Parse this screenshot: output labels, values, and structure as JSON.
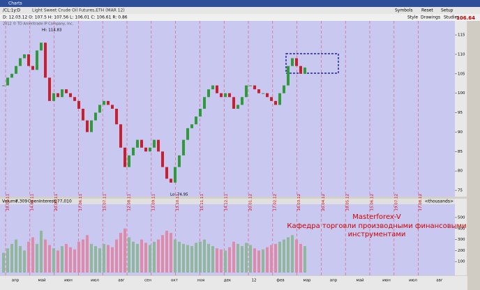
{
  "window_title": "Charts",
  "toolbar": {
    "symbol": "/CL:1y:D",
    "description": "Light Sweet Crude Oil Futures,ETH (MAR 12)",
    "buttons": [
      "Symbols",
      "Reset",
      "Setup"
    ],
    "tools": [
      "Style",
      "Drawings",
      "Studies"
    ],
    "price": "106.64"
  },
  "info": "D: 12.03.12  O: 107.5  H: 107.56  L: 106.01  C: 106.61  R: 0.86",
  "copyright": "2012 © TD Ameritrade IP Company, Inc.",
  "chart_data": {
    "type": "candlestick",
    "closes": [
      102,
      104,
      105,
      107,
      109,
      110,
      107,
      106,
      111,
      113,
      104,
      98,
      100,
      99,
      101,
      100,
      99,
      98,
      96,
      93,
      90,
      93,
      95,
      97,
      98,
      97,
      96,
      92,
      86,
      81,
      84,
      86,
      88,
      86,
      85,
      86,
      88,
      85,
      81,
      78,
      77,
      81,
      84,
      88,
      91,
      92,
      94,
      96,
      99,
      101,
      102,
      100,
      99,
      100,
      99,
      96,
      97,
      99,
      102,
      102,
      101,
      100,
      100,
      99,
      98,
      97,
      100,
      102,
      107,
      109,
      107,
      105,
      106.61
    ],
    "ylim": [
      73.4,
      118.6
    ],
    "yticks": [
      75,
      80,
      85,
      90,
      95,
      100,
      105,
      110,
      115
    ],
    "x_labels": [
      "18.03.11",
      "14.04.11",
      "20.05.11",
      "17.06.11",
      "15.07.11",
      "12.08.11",
      "13.09.11",
      "13.10.11",
      "15.11.11",
      "14.12.11",
      "20.01.12",
      "17.02.12",
      "16.03.12",
      "20.04.12",
      "18.05.12",
      "15.06.12",
      "19.07.12",
      "17.08.12"
    ],
    "annotations": {
      "high": "Hi: 114.83",
      "low": "Lo: 74.95"
    }
  },
  "volume": {
    "header": [
      "Volume",
      "7,309",
      "OpenInterest",
      "177,010"
    ],
    "unit": "<thousands>",
    "values": [
      180,
      220,
      260,
      300,
      240,
      200,
      280,
      320,
      260,
      380,
      300,
      250,
      220,
      200,
      240,
      260,
      230,
      210,
      280,
      300,
      340,
      260,
      240,
      220,
      260,
      250,
      230,
      300,
      360,
      400,
      320,
      280,
      260,
      300,
      270,
      250,
      280,
      300,
      340,
      380,
      360,
      300,
      280,
      260,
      250,
      240,
      270,
      280,
      300,
      260,
      240,
      220,
      210,
      200,
      230,
      280,
      260,
      240,
      270,
      250,
      220,
      200,
      210,
      230,
      250,
      260,
      280,
      300,
      320,
      340,
      300,
      260,
      240
    ],
    "ylim": [
      0,
      620
    ],
    "yticks": [
      100,
      200,
      300,
      400,
      500
    ]
  },
  "overlay": [
    "Masterforex-V",
    "Кафедра торговли производными финансовыми",
    "инструментами"
  ],
  "months": [
    "апр",
    "май",
    "июн",
    "июл",
    "авг",
    "сен",
    "окт",
    "ноя",
    "дек",
    "12",
    "фев",
    "мар",
    "апр",
    "май",
    "июн",
    "июл",
    "авг"
  ]
}
